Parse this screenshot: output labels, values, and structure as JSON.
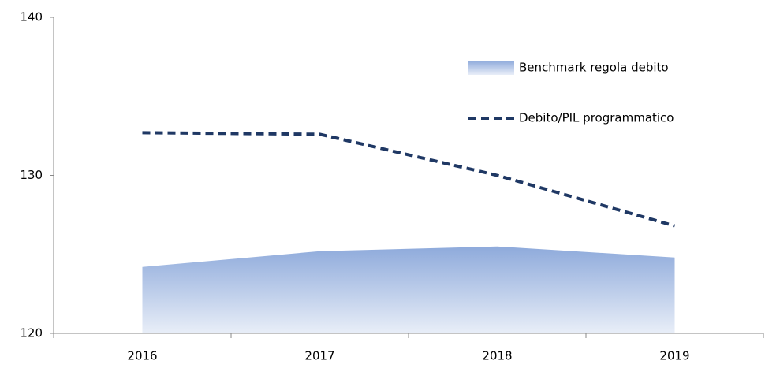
{
  "chart_data": {
    "type": "line",
    "categories": [
      "2016",
      "2017",
      "2018",
      "2019"
    ],
    "series": [
      {
        "name": "Benchmark regola debito",
        "type": "area",
        "color": "#8eaadb",
        "values": [
          124.2,
          125.2,
          125.5,
          124.8
        ]
      },
      {
        "name": "Debito/PIL programmatico",
        "type": "line",
        "dashed": true,
        "color": "#1f3864",
        "values": [
          132.7,
          132.6,
          130.0,
          126.8
        ]
      }
    ],
    "ylim": [
      120,
      140
    ],
    "yticks": [
      120,
      130,
      140
    ],
    "legend": "upper right"
  }
}
